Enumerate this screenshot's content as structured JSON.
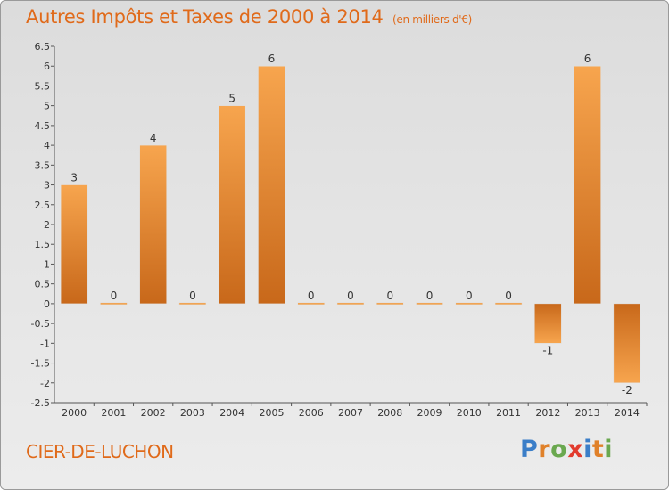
{
  "title": "Autres Impôts et Taxes de 2000 à 2014",
  "subtitle": "(en milliers d'€)",
  "commune": "CIER-DE-LUCHON",
  "logo": {
    "letters": [
      "P",
      "r",
      "o",
      "x",
      "i",
      "t",
      "i"
    ],
    "colors": [
      "#3b7ec8",
      "#e0812a",
      "#6aa84f",
      "#e23b2e",
      "#3b7ec8",
      "#e0812a",
      "#6aa84f"
    ]
  },
  "colors": {
    "bar_light": "#f7a54e",
    "bar_dark": "#c8681a",
    "title": "#e06a1a"
  },
  "chart_data": {
    "type": "bar",
    "categories": [
      "2000",
      "2001",
      "2002",
      "2003",
      "2004",
      "2005",
      "2006",
      "2007",
      "2008",
      "2009",
      "2010",
      "2011",
      "2012",
      "2013",
      "2014"
    ],
    "values": [
      3,
      0,
      4,
      0,
      5,
      6,
      0,
      0,
      0,
      0,
      0,
      0,
      -1,
      6,
      -2
    ],
    "ylim": [
      -2.5,
      6.5
    ],
    "yticks": [
      "6.5",
      "6",
      "5.5",
      "5",
      "4.5",
      "4",
      "3.5",
      "3",
      "2.5",
      "2",
      "1.5",
      "1",
      "0.5",
      "0",
      "-0.5",
      "-1",
      "-1.5",
      "-2",
      "-2.5"
    ],
    "ytick_values": [
      6.5,
      6,
      5.5,
      5,
      4.5,
      4,
      3.5,
      3,
      2.5,
      2,
      1.5,
      1,
      0.5,
      0,
      -0.5,
      -1,
      -1.5,
      -2,
      -2.5
    ],
    "data_labels": [
      "3",
      "0",
      "4",
      "0",
      "5",
      "6",
      "0",
      "0",
      "0",
      "0",
      "0",
      "0",
      "-1",
      "6",
      "-2"
    ],
    "grid": false
  }
}
